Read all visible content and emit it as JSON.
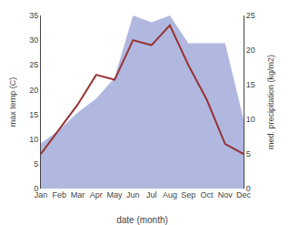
{
  "chart_data": {
    "type": "line",
    "xlabel": "date (month)",
    "ylabel": "max temp (C)",
    "y2label": "med. precipitation (kg/m2)",
    "categories": [
      "Jan",
      "Feb",
      "Mar",
      "Apr",
      "May",
      "Jun",
      "Jul",
      "Aug",
      "Sep",
      "Oct",
      "Nov",
      "Dec"
    ],
    "series": [
      {
        "type": "area",
        "color": "#b0b8e0",
        "axis": "y2",
        "values": [
          6.5,
          8.5,
          11,
          13,
          16,
          25,
          24,
          25,
          21,
          21,
          21,
          10
        ]
      },
      {
        "type": "line",
        "color": "#993333",
        "values": [
          7,
          12,
          17,
          23,
          22,
          30,
          29,
          33,
          25,
          18,
          9,
          7
        ]
      }
    ],
    "ylim": [
      0,
      35
    ],
    "yticks": [
      0,
      5,
      10,
      15,
      20,
      25,
      30,
      35
    ],
    "y2lim": [
      0,
      25
    ],
    "y2ticks": [
      0,
      5,
      10,
      15,
      20,
      25
    ],
    "grid": false
  }
}
